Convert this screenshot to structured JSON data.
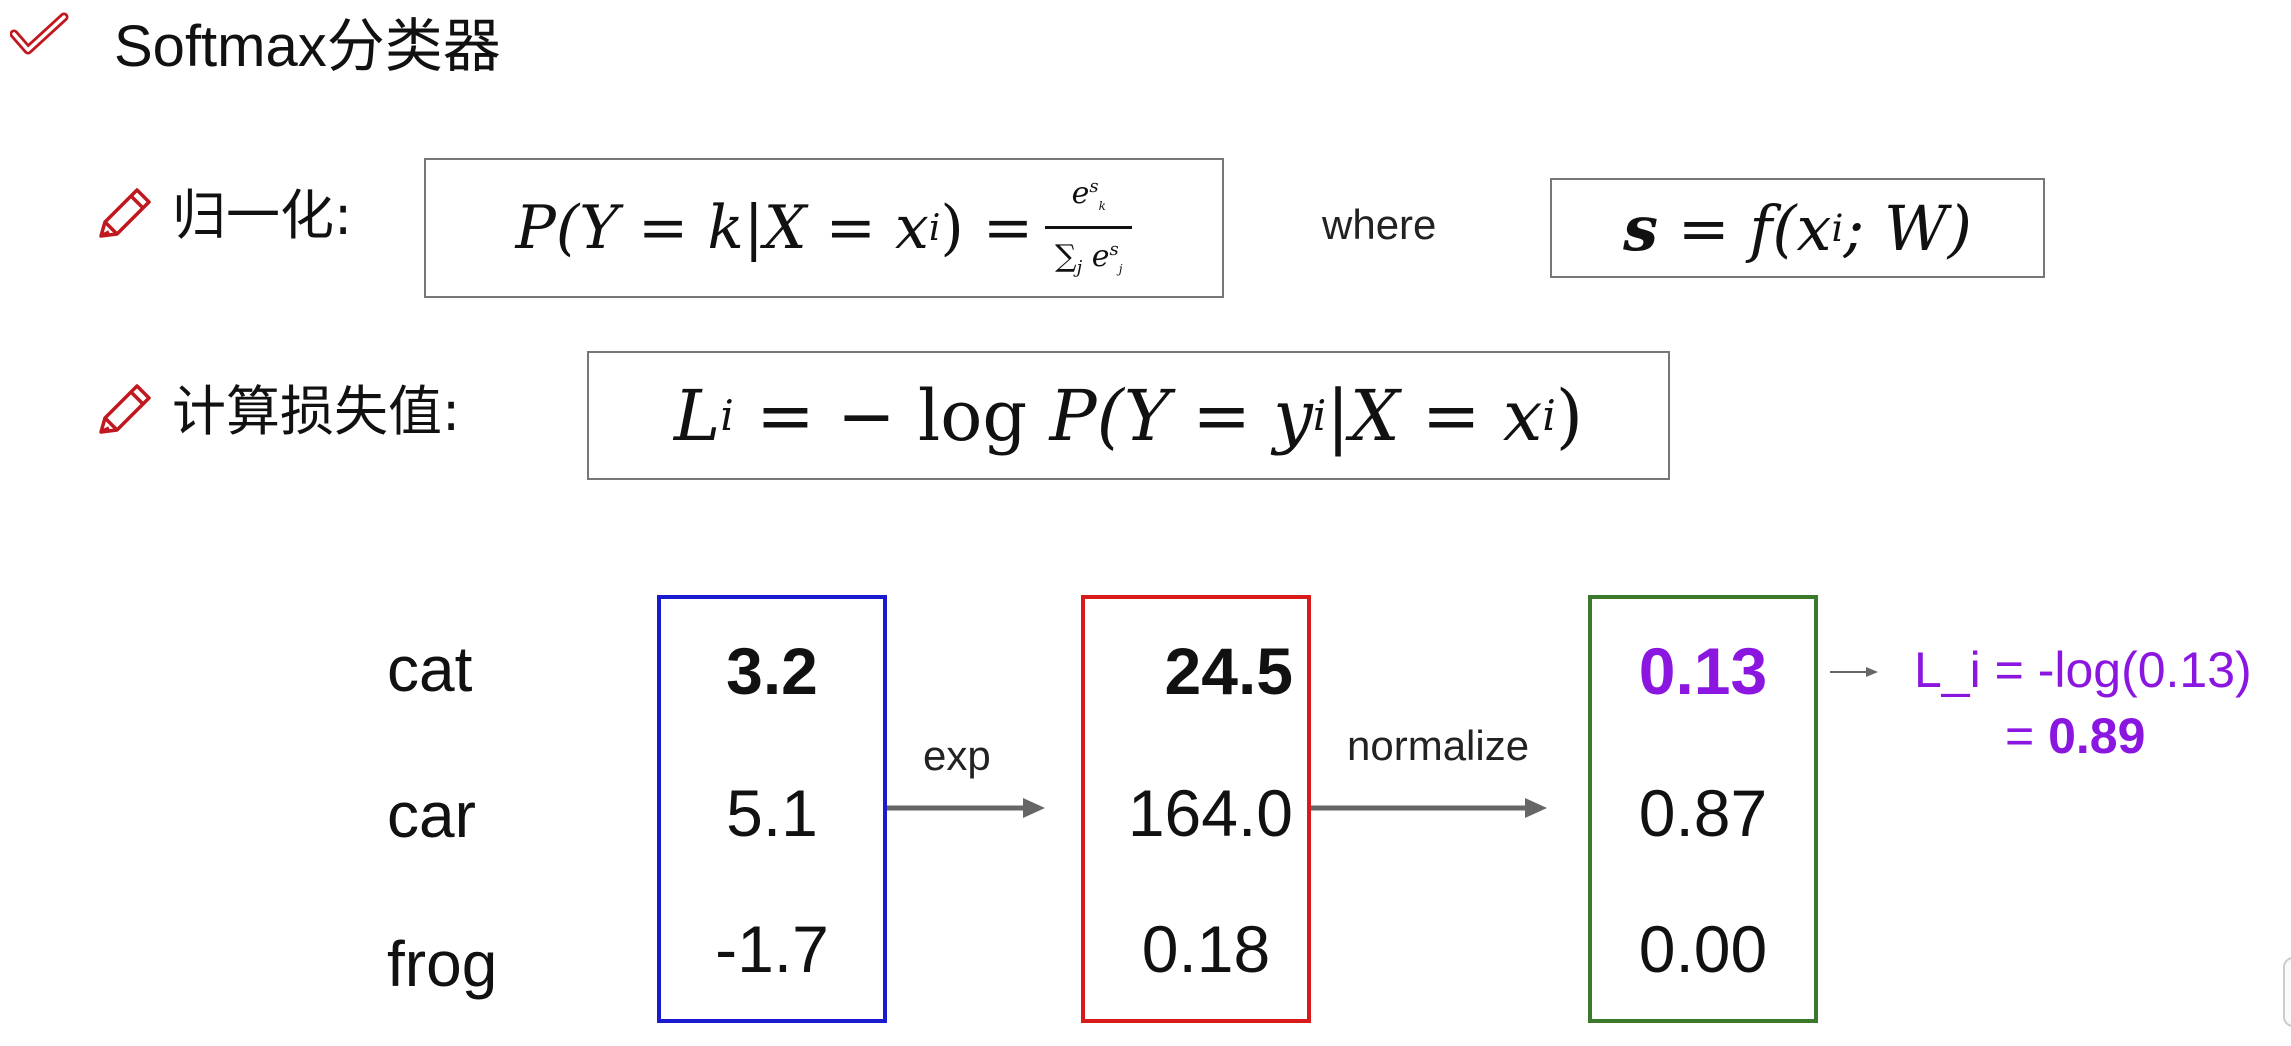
{
  "title": "Softmax分类器",
  "icons": {
    "title": "checkmark-icon",
    "bullet": "pencil-icon"
  },
  "colors": {
    "accent_red": "#c0181e",
    "score_box": "#1a1ad0",
    "exp_box": "#d81a1a",
    "prob_box": "#3a7a2a",
    "loss": "#8a16e0"
  },
  "normalize_row": {
    "label": "归一化:",
    "formula_lhs": "P(Y = k|X = x",
    "formula_sub": "i",
    "formula_eq": ") =",
    "numerator": "e",
    "numerator_sup": "s",
    "numerator_sup_sub": "k",
    "denominator_sum": "∑",
    "denominator_sum_sub": "j",
    "denominator": "e",
    "denominator_sup": "s",
    "denominator_sup_sub": "j",
    "where": "where",
    "score_formula_a": "s",
    "score_formula_b": " = ",
    "score_formula_c": "f(x",
    "score_formula_sub": "i",
    "score_formula_d": "; W)"
  },
  "loss_row": {
    "label": "计算损失值:",
    "formula_a": "L",
    "formula_a_sub": "i",
    "formula_b": " = − log ",
    "formula_c": "P(Y = y",
    "formula_c_sub": "i",
    "formula_d": "|X = x",
    "formula_d_sub": "i",
    "formula_e": ")"
  },
  "example": {
    "classes": [
      "cat",
      "car",
      "frog"
    ],
    "scores": [
      "3.2",
      "5.1",
      "-1.7"
    ],
    "exp_label": "exp",
    "exp_values": [
      "24.5",
      "164.0",
      "0.18"
    ],
    "normalize_label": "normalize",
    "probabilities": [
      "0.13",
      "0.87",
      "0.00"
    ],
    "loss_line1": "L_i = -log(0.13)",
    "loss_line2_eq": "= ",
    "loss_line2_val": "0.89"
  }
}
